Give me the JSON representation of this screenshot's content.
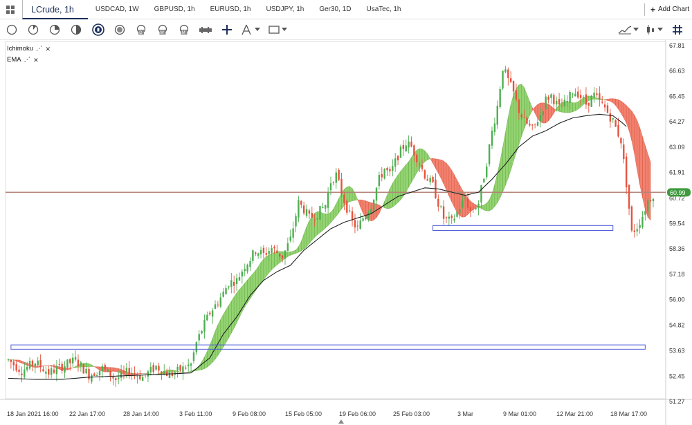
{
  "tabs": [
    {
      "label": "LCrude, 1h",
      "active": true
    },
    {
      "label": "USDCAD, 1W"
    },
    {
      "label": "GBPUSD, 1h"
    },
    {
      "label": "EURUSD, 1h"
    },
    {
      "label": "USDJPY, 1h"
    },
    {
      "label": "Ger30, 1D"
    },
    {
      "label": "UsaTec, 1h"
    }
  ],
  "add_chart_label": "Add Chart",
  "legend": {
    "indicators": [
      {
        "label": "Ichimoku"
      },
      {
        "label": "EMA"
      }
    ]
  },
  "current_price_label": "60.99",
  "colors": {
    "up": "#4caf50",
    "down": "#e5533d",
    "cloud_bull": "#8ed16a",
    "cloud_bear": "#f07a66",
    "ema": "#222222",
    "price_line": "#b5857a",
    "box": "#4b5bd6",
    "price_badge": "#3d9a3d"
  },
  "chart_data": {
    "type": "candlestick",
    "symbol": "LCrude",
    "timeframe": "1h",
    "y_ticks": [
      67.81,
      66.63,
      65.45,
      64.27,
      63.09,
      61.91,
      60.72,
      59.54,
      58.36,
      57.18,
      56.0,
      54.82,
      53.63,
      52.45,
      51.27
    ],
    "x_ticks": [
      "18 Jan 2021 16:00",
      "22 Jan 17:00",
      "28 Jan 14:00",
      "3 Feb 11:00",
      "9 Feb 08:00",
      "15 Feb 05:00",
      "19 Feb 06:00",
      "25 Feb 03:00",
      "3 Mar",
      "9 Mar 01:00",
      "12 Mar 21:00",
      "18 Mar 17:00"
    ],
    "ylim": [
      51.27,
      67.81
    ],
    "close_path": [
      [
        0,
        53.2
      ],
      [
        5,
        52.7
      ],
      [
        10,
        53.1
      ],
      [
        15,
        52.6
      ],
      [
        20,
        52.9
      ],
      [
        25,
        53.2
      ],
      [
        30,
        52.5
      ],
      [
        35,
        52.8
      ],
      [
        40,
        52.3
      ],
      [
        45,
        52.7
      ],
      [
        50,
        52.4
      ],
      [
        55,
        52.9
      ],
      [
        60,
        52.5
      ],
      [
        65,
        52.8
      ],
      [
        68,
        53.0
      ],
      [
        70,
        54.0
      ],
      [
        72,
        54.6
      ],
      [
        75,
        55.4
      ],
      [
        78,
        55.9
      ],
      [
        80,
        56.3
      ],
      [
        82,
        56.8
      ],
      [
        85,
        56.9
      ],
      [
        88,
        57.6
      ],
      [
        90,
        57.9
      ],
      [
        92,
        58.3
      ],
      [
        95,
        58.1
      ],
      [
        98,
        58.4
      ],
      [
        100,
        58.2
      ],
      [
        102,
        58.0
      ],
      [
        105,
        58.8
      ],
      [
        108,
        60.5
      ],
      [
        110,
        60.2
      ],
      [
        112,
        59.8
      ],
      [
        115,
        60.0
      ],
      [
        118,
        60.4
      ],
      [
        120,
        61.5
      ],
      [
        122,
        61.8
      ],
      [
        125,
        60.6
      ],
      [
        128,
        59.6
      ],
      [
        130,
        59.3
      ],
      [
        132,
        59.8
      ],
      [
        135,
        60.4
      ],
      [
        138,
        61.6
      ],
      [
        140,
        62.1
      ],
      [
        142,
        61.8
      ],
      [
        145,
        62.7
      ],
      [
        148,
        63.3
      ],
      [
        150,
        63.1
      ],
      [
        152,
        62.6
      ],
      [
        155,
        61.8
      ],
      [
        158,
        61.3
      ],
      [
        160,
        60.5
      ],
      [
        162,
        59.8
      ],
      [
        165,
        59.6
      ],
      [
        168,
        60.3
      ],
      [
        170,
        60.7
      ],
      [
        172,
        60.1
      ],
      [
        175,
        60.5
      ],
      [
        178,
        62.4
      ],
      [
        180,
        63.8
      ],
      [
        182,
        65.0
      ],
      [
        184,
        66.8
      ],
      [
        186,
        66.2
      ],
      [
        188,
        65.6
      ],
      [
        190,
        64.8
      ],
      [
        192,
        64.3
      ],
      [
        195,
        63.9
      ],
      [
        198,
        64.6
      ],
      [
        200,
        65.3
      ],
      [
        202,
        65.5
      ],
      [
        205,
        64.9
      ],
      [
        208,
        65.2
      ],
      [
        210,
        65.7
      ],
      [
        212,
        65.6
      ],
      [
        215,
        65.1
      ],
      [
        218,
        65.5
      ],
      [
        220,
        65.2
      ],
      [
        222,
        64.9
      ],
      [
        225,
        64.3
      ],
      [
        228,
        63.4
      ],
      [
        230,
        61.4
      ],
      [
        232,
        59.1
      ],
      [
        234,
        59.4
      ],
      [
        236,
        59.9
      ],
      [
        238,
        60.6
      ],
      [
        240,
        60.9
      ]
    ],
    "ema_path": [
      [
        0,
        52.35
      ],
      [
        10,
        52.3
      ],
      [
        20,
        52.3
      ],
      [
        30,
        52.4
      ],
      [
        40,
        52.45
      ],
      [
        50,
        52.5
      ],
      [
        60,
        52.55
      ],
      [
        68,
        52.6
      ],
      [
        75,
        53.3
      ],
      [
        80,
        54.4
      ],
      [
        85,
        55.2
      ],
      [
        90,
        56.2
      ],
      [
        95,
        56.9
      ],
      [
        100,
        57.3
      ],
      [
        105,
        57.6
      ],
      [
        110,
        58.3
      ],
      [
        115,
        58.8
      ],
      [
        120,
        59.3
      ],
      [
        125,
        59.6
      ],
      [
        130,
        59.8
      ],
      [
        135,
        60.0
      ],
      [
        140,
        60.4
      ],
      [
        145,
        60.8
      ],
      [
        150,
        61.0
      ],
      [
        155,
        61.2
      ],
      [
        160,
        61.15
      ],
      [
        165,
        61.0
      ],
      [
        170,
        60.85
      ],
      [
        175,
        61.0
      ],
      [
        180,
        61.6
      ],
      [
        185,
        62.3
      ],
      [
        190,
        63.1
      ],
      [
        195,
        63.6
      ],
      [
        200,
        63.85
      ],
      [
        205,
        64.2
      ],
      [
        210,
        64.45
      ],
      [
        215,
        64.55
      ],
      [
        220,
        64.62
      ],
      [
        225,
        64.55
      ],
      [
        228,
        64.27
      ],
      [
        230,
        64.05
      ]
    ],
    "boxes": [
      {
        "x0": 158,
        "x1": 225,
        "y0": 59.22,
        "y1": 59.45
      },
      {
        "x0": 1,
        "x1": 237,
        "y0": 53.7,
        "y1": 53.9
      }
    ],
    "horizontal_line": 60.99,
    "n_points": 241
  }
}
